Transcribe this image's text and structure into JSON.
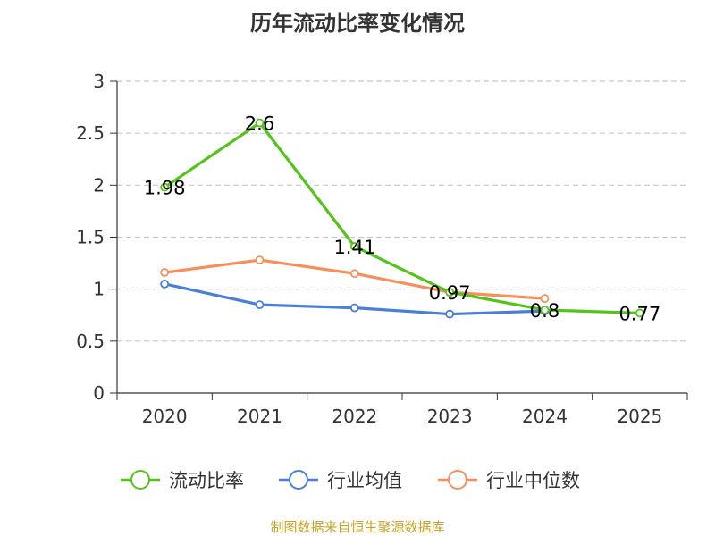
{
  "title": "历年流动比率变化情况",
  "source": "制图数据来自恒生聚源数据库",
  "chart_data": {
    "type": "line",
    "title": "历年流动比率变化情况",
    "categories": [
      "2020",
      "2021",
      "2022",
      "2023",
      "2024",
      "2025"
    ],
    "ylim": [
      0,
      3
    ],
    "yticks": [
      0,
      0.5,
      1,
      1.5,
      2,
      2.5,
      3
    ],
    "ytick_labels": [
      "0",
      "0.5",
      "1",
      "1.5",
      "2",
      "2.5",
      "3"
    ],
    "grid": true,
    "legend_position": "bottom",
    "series": [
      {
        "name": "流动比率",
        "color": "#52c41a",
        "values": [
          1.98,
          2.6,
          1.41,
          0.97,
          0.8,
          0.77
        ],
        "labels": [
          "1.98",
          "2.6",
          "1.41",
          "0.97",
          "0.8",
          "0.77"
        ]
      },
      {
        "name": "行业均值",
        "color": "#4a7fd9",
        "values": [
          1.05,
          0.85,
          0.82,
          0.76,
          0.79,
          null
        ]
      },
      {
        "name": "行业中位数",
        "color": "#f98e5a",
        "values": [
          1.16,
          1.28,
          1.15,
          0.97,
          0.91,
          null
        ]
      }
    ]
  }
}
